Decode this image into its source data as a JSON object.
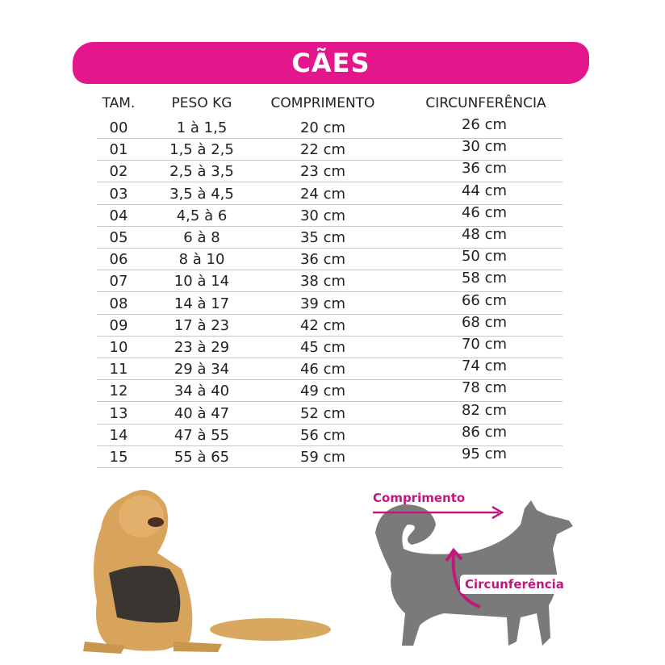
{
  "title": "CÃES",
  "colors": {
    "accent": "#e3168c",
    "silhouette": "#7a7a7a"
  },
  "table": {
    "headers": [
      "TAM.",
      "PESO KG",
      "COMPRIMENTO",
      "CIRCUNFERÊNCIA"
    ],
    "rows": [
      [
        "00",
        "1 à 1,5",
        "20 cm",
        "26 cm"
      ],
      [
        "01",
        "1,5 à 2,5",
        "22 cm",
        "30 cm"
      ],
      [
        "02",
        "2,5 à 3,5",
        "23 cm",
        "36 cm"
      ],
      [
        "03",
        "3,5 à 4,5",
        "24 cm",
        "44 cm"
      ],
      [
        "04",
        "4,5 à 6",
        "30 cm",
        "46 cm"
      ],
      [
        "05",
        "6 à 8",
        "35 cm",
        "48 cm"
      ],
      [
        "06",
        "8 à 10",
        "36 cm",
        "50 cm"
      ],
      [
        "07",
        "10 à 14",
        "38 cm",
        "58 cm"
      ],
      [
        "08",
        "14 à 17",
        "39 cm",
        "66 cm"
      ],
      [
        "09",
        "17 à 23",
        "42 cm",
        "68 cm"
      ],
      [
        "10",
        "23 à 29",
        "45 cm",
        "70 cm"
      ],
      [
        "11",
        "29 à 34",
        "46 cm",
        "74 cm"
      ],
      [
        "12",
        "34 à 40",
        "49 cm",
        "78 cm"
      ],
      [
        "13",
        "40 à 47",
        "52 cm",
        "82 cm"
      ],
      [
        "14",
        "47 à 55",
        "56 cm",
        "86 cm"
      ],
      [
        "15",
        "55 à 65",
        "59 cm",
        "95 cm"
      ]
    ]
  },
  "diagram": {
    "length_label": "Comprimento",
    "girth_label": "Circunferência"
  }
}
